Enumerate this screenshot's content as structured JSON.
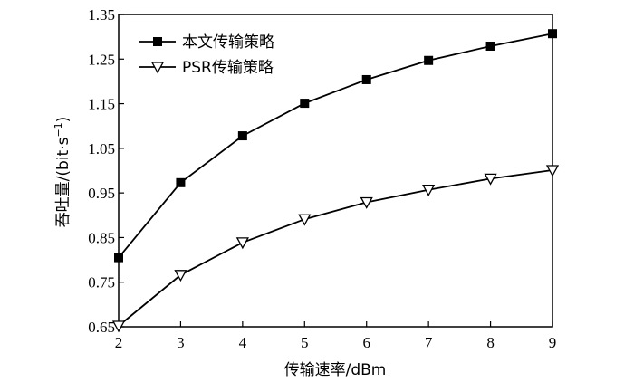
{
  "chart_data": {
    "type": "line",
    "x": [
      2,
      3,
      4,
      5,
      6,
      7,
      8,
      9
    ],
    "series": [
      {
        "name": "本文传输策略",
        "marker": "square",
        "values": [
          0.805,
          0.973,
          1.078,
          1.151,
          1.204,
          1.247,
          1.279,
          1.307
        ]
      },
      {
        "name": "PSR传输策略",
        "marker": "triangle-down",
        "values": [
          0.652,
          0.766,
          0.839,
          0.891,
          0.929,
          0.957,
          0.982,
          1.001
        ]
      }
    ],
    "xlabel": "传输速率/dBm",
    "ylabel_main": "吞吐量/(bit·s",
    "ylabel_sup": "−1",
    "ylabel_end": ")",
    "xlim": [
      2,
      9
    ],
    "ylim": [
      0.65,
      1.35
    ],
    "xticks": [
      "2",
      "3",
      "4",
      "5",
      "6",
      "7",
      "8",
      "9"
    ],
    "yticks": [
      "0.65",
      "0.75",
      "0.85",
      "0.95",
      "1.05",
      "1.15",
      "1.25",
      "1.35"
    ],
    "grid": false,
    "legend_position": "top-left",
    "line_color": "#000000"
  }
}
